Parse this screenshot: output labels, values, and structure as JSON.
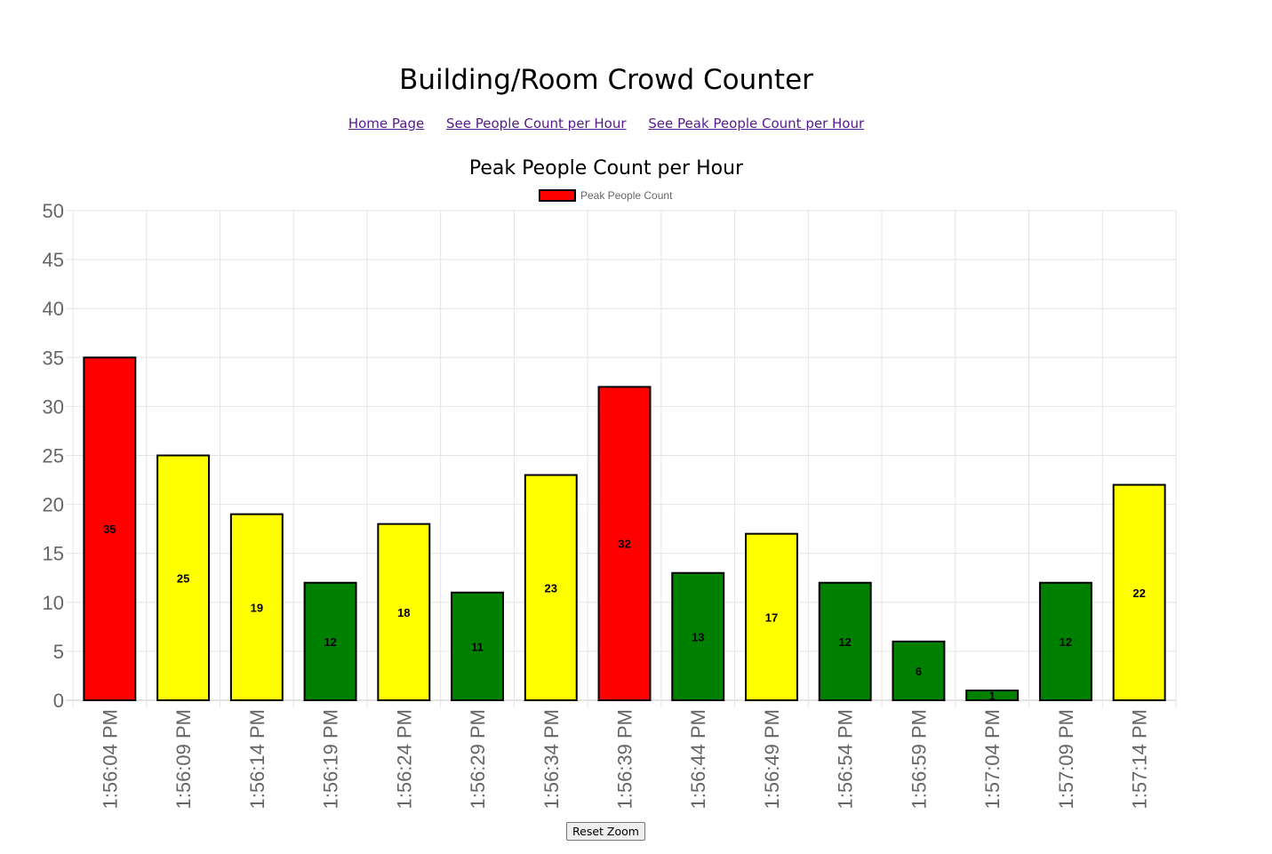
{
  "header": {
    "title": "Building/Room Crowd Counter"
  },
  "nav": {
    "links": [
      {
        "label": "Home Page"
      },
      {
        "label": "See People Count per Hour"
      },
      {
        "label": "See Peak People Count per Hour"
      }
    ]
  },
  "chart_data": {
    "type": "bar",
    "title": "Peak People Count per Hour",
    "legend": {
      "label": "Peak People Count",
      "color": "#ff0000",
      "placement": "top-center"
    },
    "categories": [
      "1:56:04 PM",
      "1:56:09 PM",
      "1:56:14 PM",
      "1:56:19 PM",
      "1:56:24 PM",
      "1:56:29 PM",
      "1:56:34 PM",
      "1:56:39 PM",
      "1:56:44 PM",
      "1:56:49 PM",
      "1:56:54 PM",
      "1:56:59 PM",
      "1:57:04 PM",
      "1:57:09 PM",
      "1:57:14 PM"
    ],
    "series": [
      {
        "name": "Peak People Count",
        "values": [
          35,
          25,
          19,
          12,
          18,
          11,
          23,
          32,
          13,
          17,
          12,
          6,
          1,
          12,
          22
        ],
        "colors": [
          "#ff0000",
          "#ffff00",
          "#ffff00",
          "#008000",
          "#ffff00",
          "#008000",
          "#ffff00",
          "#ff0000",
          "#008000",
          "#ffff00",
          "#008000",
          "#008000",
          "#008000",
          "#008000",
          "#ffff00"
        ]
      }
    ],
    "yticks": [
      "0",
      "5",
      "10",
      "15",
      "20",
      "25",
      "30",
      "35",
      "40",
      "45",
      "50"
    ],
    "ylim": [
      0,
      50
    ],
    "grid": true,
    "xlabel": "",
    "ylabel": ""
  },
  "controls": {
    "reset_label": "Reset Zoom"
  }
}
